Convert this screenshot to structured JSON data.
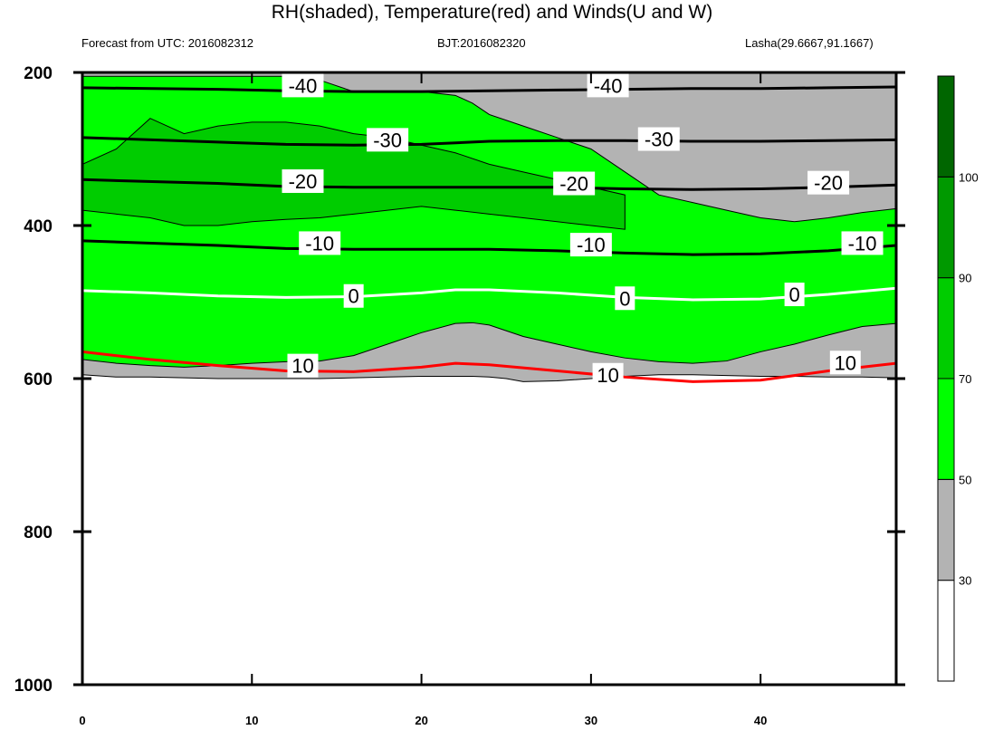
{
  "title": "RH(shaded), Temperature(red) and Winds(U and W)",
  "subtitle_left": "Forecast from UTC: 2016082312",
  "subtitle_center": "BJT:2016082320",
  "subtitle_right": "Lasha(29.6667,91.1667)",
  "colors": {
    "rh_30_50": "#b3b3b3",
    "rh_50_70": "#00ff00",
    "rh_70_90": "#00cc00",
    "rh_90_100": "#009900",
    "rh_100": "#006600",
    "temperature_warm": "#ff0000",
    "temperature_zero": "#ffffff",
    "temperature_cold": "#000000"
  },
  "chart_data": {
    "type": "heatmap",
    "x_ticks": [
      "0",
      "10",
      "20",
      "30",
      "40"
    ],
    "y_ticks": [
      "200",
      "400",
      "600",
      "800",
      "1000"
    ],
    "xlim": [
      0,
      48
    ],
    "ylim": [
      1000,
      200
    ],
    "colorbar": {
      "levels": [
        "30",
        "50",
        "70",
        "90",
        "100"
      ],
      "colors": [
        "#ffffff",
        "#b3b3b3",
        "#00ff00",
        "#00cc00",
        "#009900",
        "#006600"
      ]
    },
    "rh_regions": [
      {
        "level": "30-50",
        "color": "#b3b3b3",
        "x": [
          0,
          2,
          4,
          6,
          8,
          10,
          12,
          14,
          16,
          18,
          20,
          21,
          22,
          23,
          24,
          25,
          26,
          28,
          30,
          32,
          34,
          36,
          38,
          40,
          42,
          44,
          46,
          48
        ],
        "bottom": [
          595,
          598,
          598,
          599,
          600,
          600,
          600,
          600,
          599,
          598,
          597,
          597,
          597,
          597,
          598,
          600,
          604,
          603,
          600,
          597,
          595,
          595,
          596,
          597,
          597,
          598,
          598,
          599
        ],
        "top": [
          200,
          200,
          200,
          200,
          200,
          200,
          200,
          200,
          200,
          200,
          200,
          200,
          200,
          200,
          200,
          200,
          200,
          200,
          200,
          200,
          200,
          200,
          200,
          200,
          200,
          200,
          200,
          200
        ]
      },
      {
        "level": "50-70",
        "color": "#00ff00",
        "x": [
          0,
          2,
          4,
          6,
          8,
          10,
          12,
          14,
          16,
          18,
          20,
          22,
          23,
          24,
          26,
          28,
          30,
          32,
          34,
          36,
          38,
          40,
          42,
          44,
          46,
          48
        ],
        "bottom": [
          575,
          580,
          583,
          585,
          583,
          580,
          578,
          577,
          570,
          555,
          540,
          528,
          527,
          530,
          545,
          555,
          565,
          573,
          578,
          580,
          577,
          565,
          555,
          543,
          532,
          528
        ],
        "top": [
          205,
          205,
          205,
          205,
          205,
          205,
          205,
          210,
          225,
          225,
          225,
          230,
          240,
          255,
          270,
          285,
          300,
          330,
          360,
          370,
          380,
          390,
          395,
          390,
          383,
          378
        ]
      },
      {
        "level": "70-90",
        "color": "#00cc00",
        "x": [
          0,
          2,
          4,
          6,
          8,
          10,
          12,
          14,
          16,
          18,
          20,
          22,
          24,
          26,
          28,
          30,
          32
        ],
        "bottom": [
          380,
          385,
          390,
          400,
          400,
          395,
          392,
          390,
          385,
          380,
          375,
          380,
          385,
          390,
          395,
          400,
          405
        ],
        "top": [
          320,
          300,
          260,
          280,
          270,
          265,
          265,
          270,
          280,
          285,
          295,
          305,
          320,
          330,
          340,
          350,
          360
        ]
      }
    ],
    "isotherms": [
      {
        "label": "-40",
        "x": [
          0,
          8,
          12,
          16,
          20,
          24,
          28,
          32,
          36,
          40,
          44,
          48
        ],
        "y": [
          220,
          222,
          224,
          225,
          225,
          224,
          223,
          222,
          221,
          221,
          220,
          219
        ]
      },
      {
        "label": "-30",
        "x": [
          0,
          8,
          12,
          16,
          20,
          24,
          28,
          32,
          36,
          40,
          44,
          48
        ],
        "y": [
          285,
          291,
          294,
          295,
          294,
          290,
          289,
          289,
          290,
          290,
          289,
          288
        ]
      },
      {
        "label": "-20",
        "x": [
          0,
          8,
          12,
          16,
          20,
          24,
          28,
          32,
          36,
          40,
          44,
          48
        ],
        "y": [
          340,
          345,
          349,
          350,
          350,
          350,
          350,
          352,
          353,
          352,
          350,
          347
        ]
      },
      {
        "label": "-10",
        "x": [
          0,
          8,
          12,
          16,
          20,
          24,
          28,
          32,
          36,
          40,
          44,
          48
        ],
        "y": [
          420,
          426,
          430,
          431,
          431,
          431,
          433,
          436,
          438,
          437,
          433,
          426
        ]
      },
      {
        "label": "0",
        "x": [
          0,
          4,
          8,
          12,
          16,
          20,
          22,
          24,
          28,
          32,
          36,
          40,
          44,
          48
        ],
        "y": [
          485,
          488,
          492,
          494,
          493,
          488,
          484,
          484,
          488,
          494,
          497,
          496,
          490,
          482
        ]
      },
      {
        "label": "10",
        "x": [
          0,
          4,
          8,
          12,
          16,
          20,
          22,
          24,
          28,
          32,
          36,
          40,
          44,
          48
        ],
        "y": [
          565,
          575,
          583,
          590,
          591,
          585,
          580,
          582,
          590,
          598,
          604,
          602,
          590,
          580
        ]
      }
    ],
    "contour_labels": [
      {
        "text": "-40",
        "x": 13,
        "y": 217
      },
      {
        "text": "-40",
        "x": 31,
        "y": 217
      },
      {
        "text": "-30",
        "x": 18,
        "y": 288
      },
      {
        "text": "-30",
        "x": 34,
        "y": 287
      },
      {
        "text": "-20",
        "x": 13,
        "y": 342
      },
      {
        "text": "-20",
        "x": 29,
        "y": 345
      },
      {
        "text": "-20",
        "x": 44,
        "y": 344
      },
      {
        "text": "-10",
        "x": 14,
        "y": 423
      },
      {
        "text": "-10",
        "x": 30,
        "y": 425
      },
      {
        "text": "-10",
        "x": 46,
        "y": 423
      },
      {
        "text": "0",
        "x": 16,
        "y": 492
      },
      {
        "text": "0",
        "x": 32,
        "y": 495
      },
      {
        "text": "0",
        "x": 42,
        "y": 490
      },
      {
        "text": "10",
        "x": 13,
        "y": 583
      },
      {
        "text": "10",
        "x": 31,
        "y": 595
      },
      {
        "text": "10",
        "x": 45,
        "y": 579
      }
    ]
  }
}
